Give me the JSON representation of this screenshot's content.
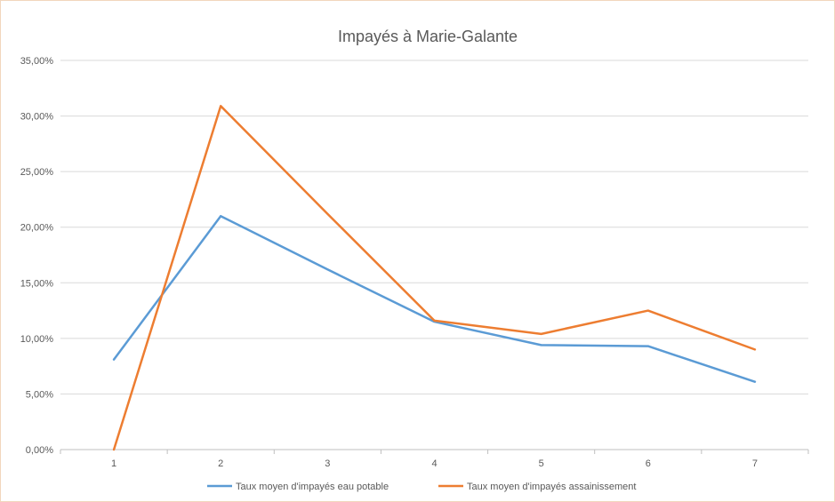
{
  "chart_data": {
    "type": "line",
    "title": "Impayés à Marie-Galante",
    "xlabel": "",
    "ylabel": "",
    "categories": [
      "1",
      "2",
      "3",
      "4",
      "5",
      "6",
      "7"
    ],
    "y_ticks": [
      "0,00%",
      "5,00%",
      "10,00%",
      "15,00%",
      "20,00%",
      "25,00%",
      "30,00%",
      "35,00%"
    ],
    "ylim": [
      0,
      0.35
    ],
    "y_tick_step": 0.05,
    "grid": true,
    "legend_position": "bottom",
    "series": [
      {
        "name": "Taux moyen d'impayés eau potable",
        "color": "#5b9bd5",
        "values": [
          0.081,
          0.21,
          0.162,
          0.115,
          0.094,
          0.093,
          0.061
        ]
      },
      {
        "name": "Taux moyen d'impayés assainissement",
        "color": "#ed7d31",
        "values": [
          0.0,
          0.309,
          0.212,
          0.116,
          0.104,
          0.125,
          0.09
        ]
      }
    ]
  }
}
